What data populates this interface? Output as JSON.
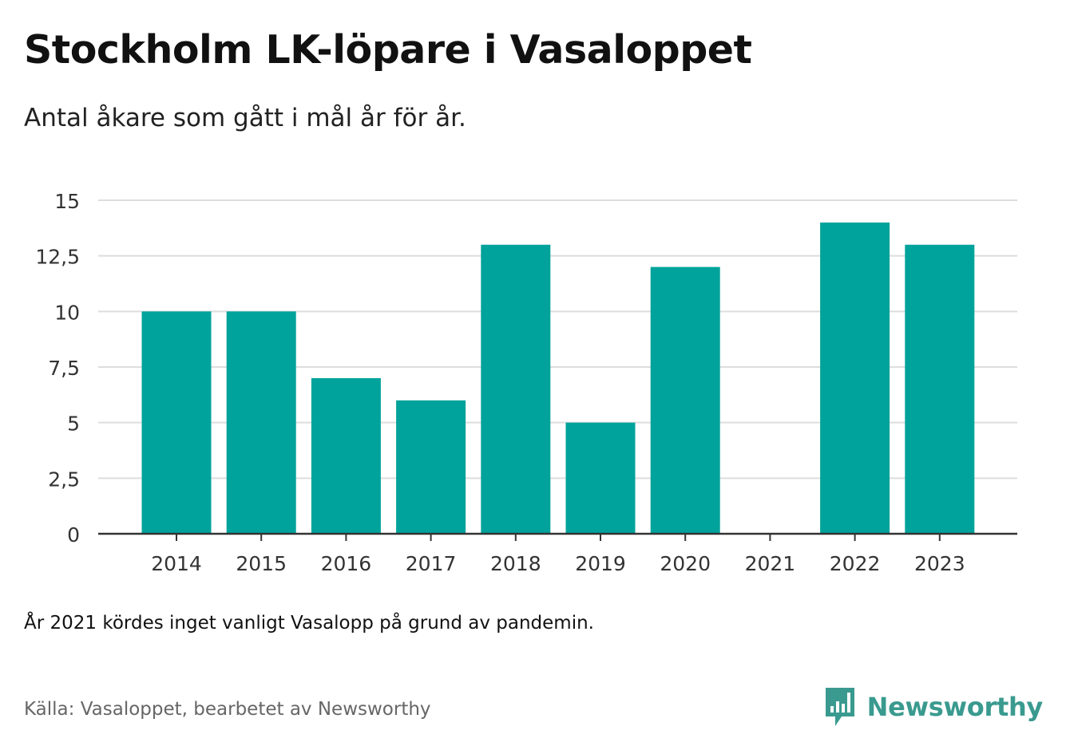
{
  "title": "Stockholm LK-löpare i Vasaloppet",
  "subtitle": "Antal åkare som gått i mål år för år.",
  "note": "År 2021 kördes inget vanligt Vasalopp på grund av pandemin.",
  "source": "Källa: Vasaloppet, bearbetet av Newsworthy",
  "brand": {
    "name": "Newsworthy",
    "icon": "newsworthy-logo-icon",
    "color": "#3a9a8f"
  },
  "colors": {
    "bar": "#00a39b",
    "grid": "#dddddd",
    "axis": "#333333",
    "tick_text": "#333333"
  },
  "chart_data": {
    "type": "bar",
    "title": "Stockholm LK-löpare i Vasaloppet",
    "subtitle": "Antal åkare som gått i mål år för år.",
    "categories": [
      "2014",
      "2015",
      "2016",
      "2017",
      "2018",
      "2019",
      "2020",
      "2021",
      "2022",
      "2023"
    ],
    "values": [
      10,
      10,
      7,
      6,
      13,
      5,
      12,
      0,
      14,
      13
    ],
    "ylim": [
      0,
      15
    ],
    "yticks": [
      0,
      2.5,
      5,
      7.5,
      10,
      12.5,
      15
    ],
    "ytick_labels": [
      "0",
      "2,5",
      "5",
      "7,5",
      "10",
      "12,5",
      "15"
    ],
    "grid": true,
    "legend": "none"
  }
}
